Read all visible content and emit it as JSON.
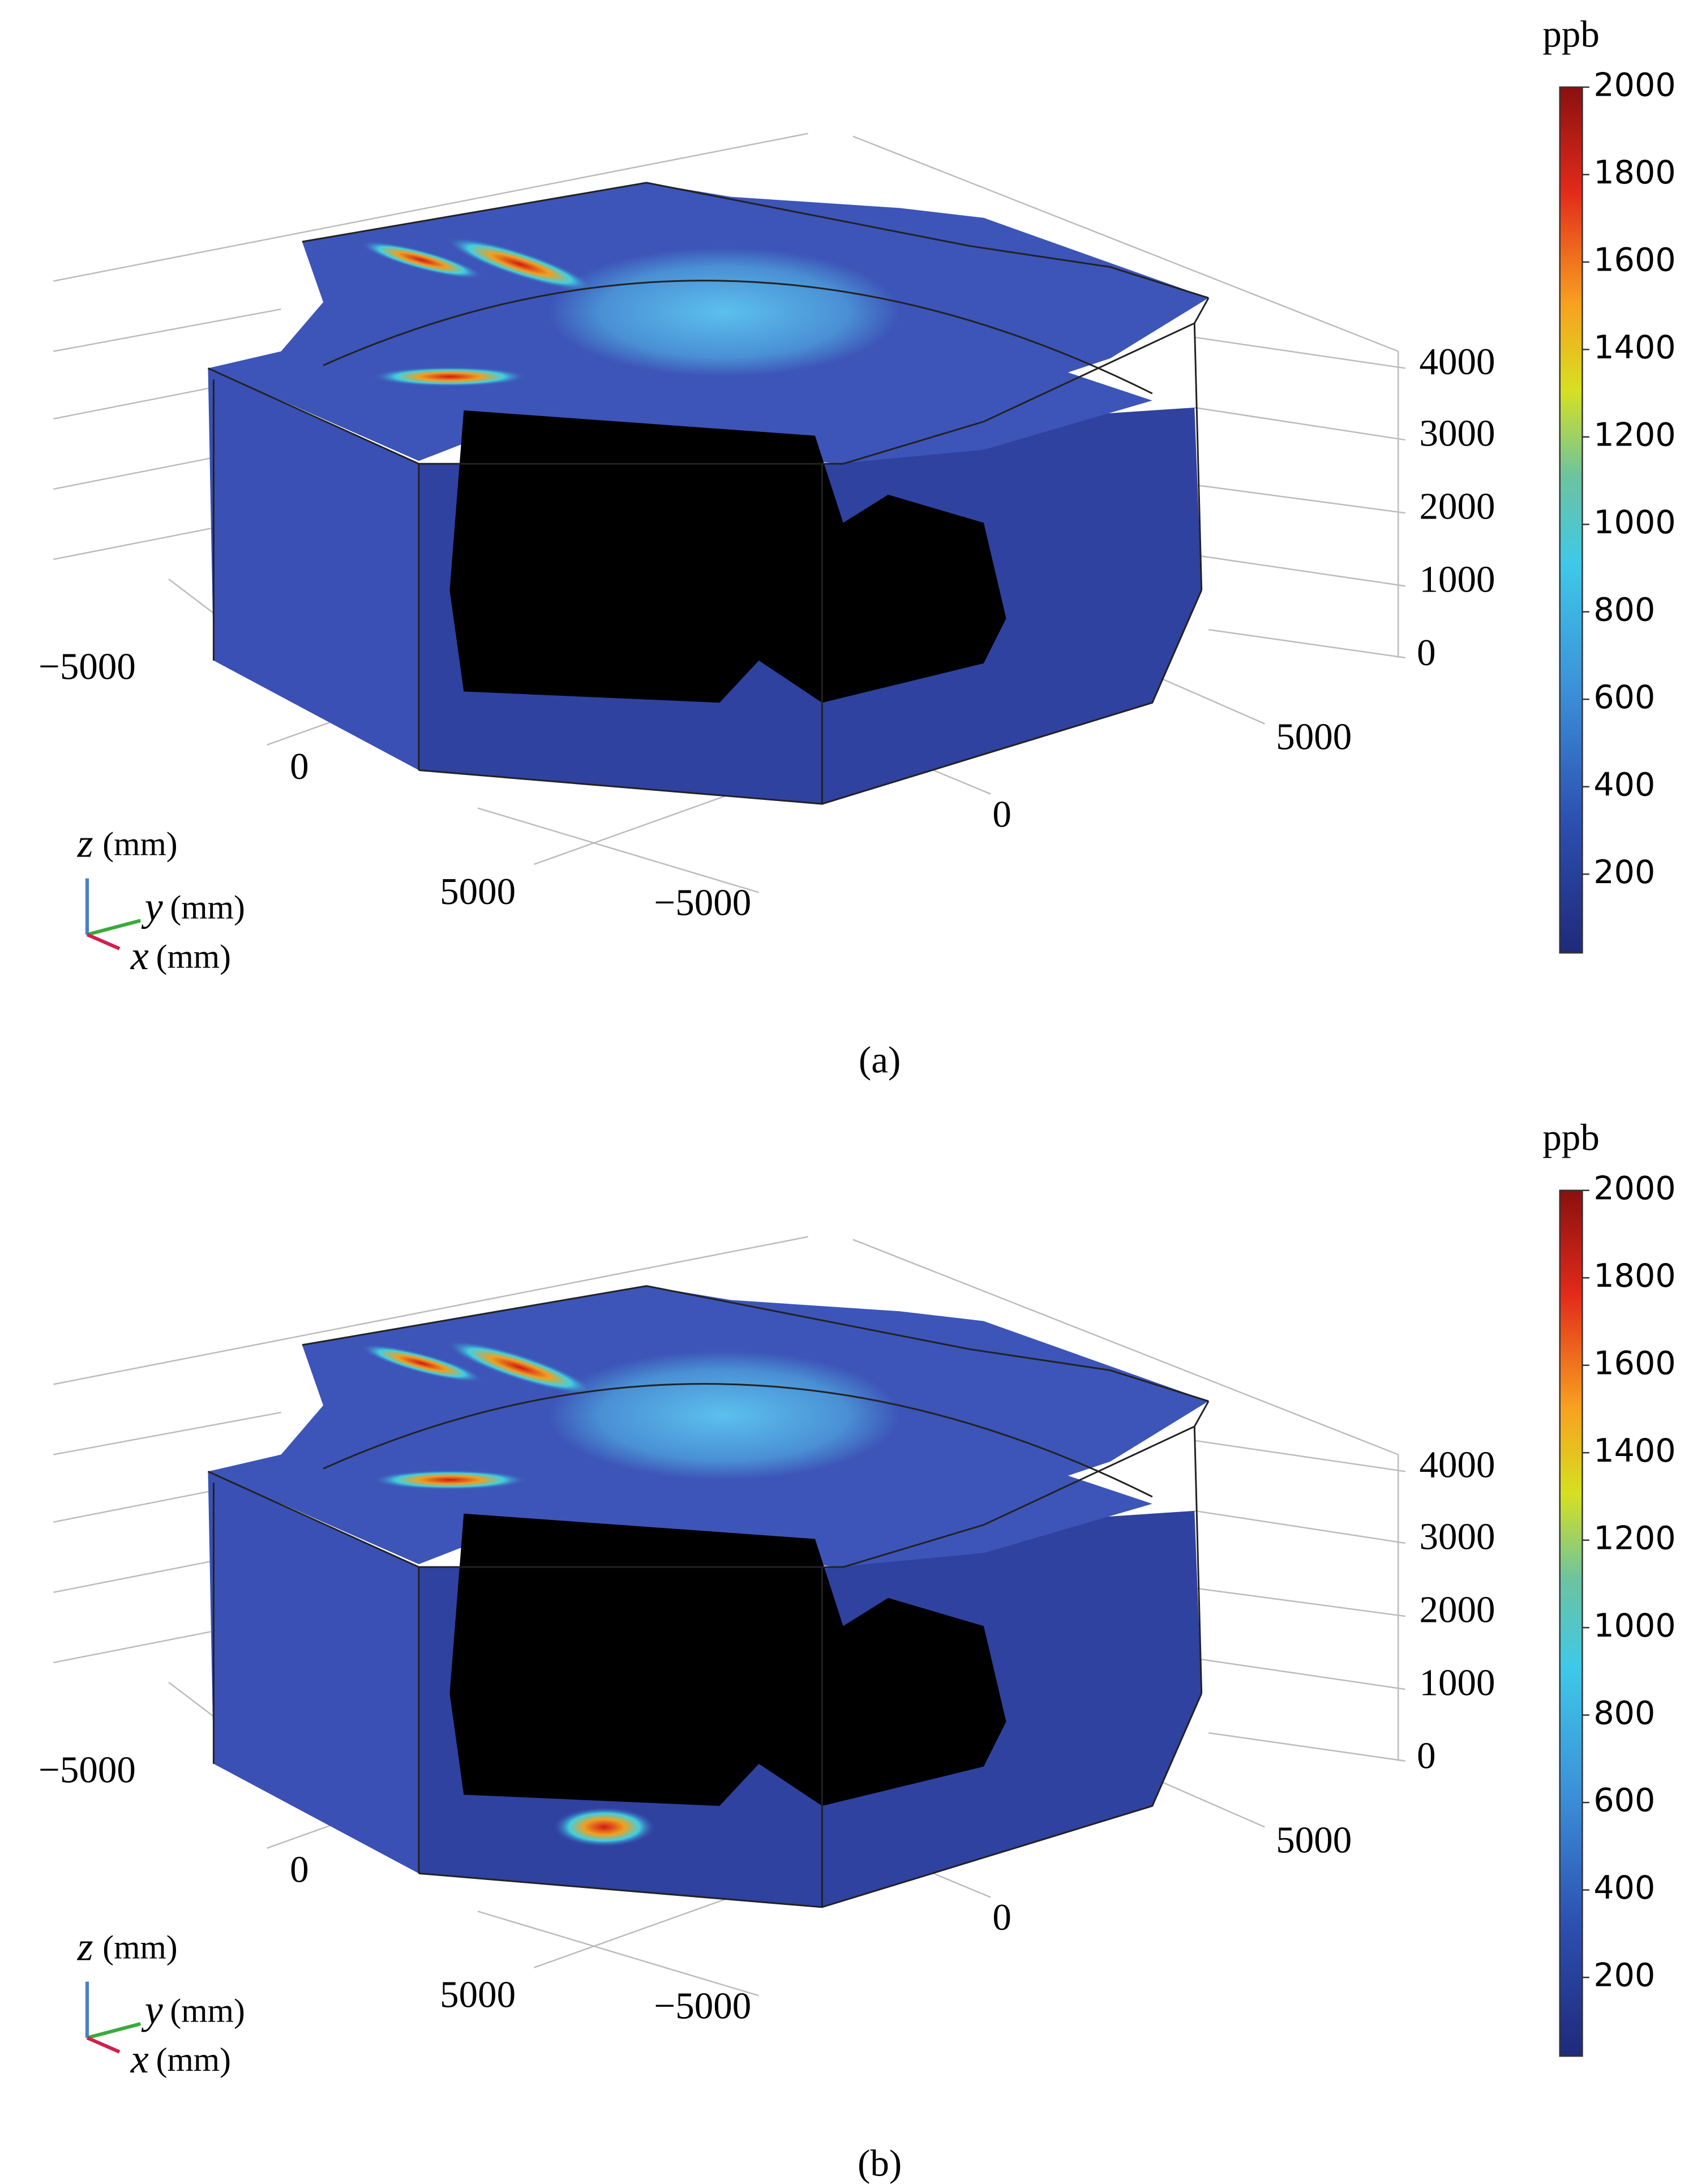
{
  "panels": [
    {
      "caption": "(a)",
      "colorbar": {
        "unit": "ppb",
        "ticks": [
          2000,
          1800,
          1600,
          1400,
          1200,
          1000,
          800,
          600,
          400,
          200
        ]
      },
      "z_ticks": [
        "4000",
        "3000",
        "2000",
        "1000",
        "0"
      ],
      "y_ticks": [
        "−5000",
        "0",
        "5000"
      ],
      "x_ticks": [
        "5000",
        "0",
        "−5000"
      ],
      "axes": {
        "z": {
          "symbol": "z",
          "unit": "(mm)"
        },
        "y": {
          "symbol": "y",
          "unit": "(mm)"
        },
        "x": {
          "symbol": "x",
          "unit": "(mm)"
        }
      }
    },
    {
      "caption": "(b)",
      "colorbar": {
        "unit": "ppb",
        "ticks": [
          2000,
          1800,
          1600,
          1400,
          1200,
          1000,
          800,
          600,
          400,
          200
        ]
      },
      "z_ticks": [
        "4000",
        "3000",
        "2000",
        "1000",
        "0"
      ],
      "y_ticks": [
        "−5000",
        "0",
        "5000"
      ],
      "x_ticks": [
        "5000",
        "0",
        "−5000"
      ],
      "axes": {
        "z": {
          "symbol": "z",
          "unit": "(mm)"
        },
        "y": {
          "symbol": "y",
          "unit": "(mm)"
        },
        "x": {
          "symbol": "x",
          "unit": "(mm)"
        }
      }
    }
  ]
}
